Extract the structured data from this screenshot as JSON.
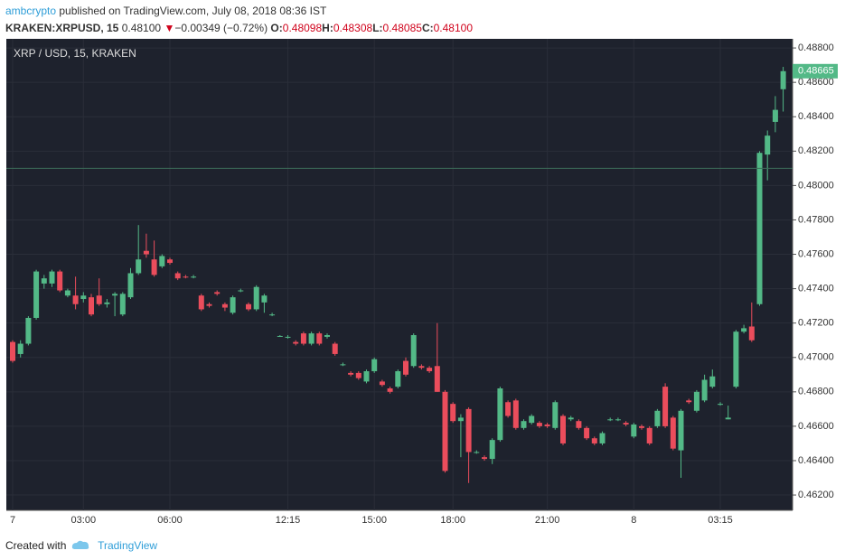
{
  "header": {
    "author": "ambcrypto",
    "published": "published on TradingView.com, July 08, 2018 08:36 IST",
    "symbol": "KRAKEN:XRPUSD, 15",
    "last": "0.48100",
    "arrow": "▼",
    "change": "−0.00349 (−0.72%)",
    "ohlc": [
      {
        "label": "O:",
        "value": "0.48098"
      },
      {
        "label": "H:",
        "value": "0.48308"
      },
      {
        "label": "L:",
        "value": "0.48085"
      },
      {
        "label": "C:",
        "value": "0.48100"
      }
    ]
  },
  "footer": {
    "created": "Created with",
    "brand": "TradingView"
  },
  "chart_data": {
    "type": "candlestick",
    "title": "XRP / USD, 15, KRAKEN",
    "up_color": "#53b987",
    "down_color": "#eb4d5c",
    "grid": true,
    "ylim": [
      0.46111,
      0.48853
    ],
    "yticks": [
      {
        "value": 0.462,
        "label": "0.46200"
      },
      {
        "value": 0.464,
        "label": "0.46400"
      },
      {
        "value": 0.466,
        "label": "0.46600"
      },
      {
        "value": 0.468,
        "label": "0.46800"
      },
      {
        "value": 0.47,
        "label": "0.47000"
      },
      {
        "value": 0.472,
        "label": "0.47200"
      },
      {
        "value": 0.474,
        "label": "0.47400"
      },
      {
        "value": 0.476,
        "label": "0.47600"
      },
      {
        "value": 0.478,
        "label": "0.47800"
      },
      {
        "value": 0.48,
        "label": "0.48000"
      },
      {
        "value": 0.482,
        "label": "0.48200"
      },
      {
        "value": 0.484,
        "label": "0.48400"
      },
      {
        "value": 0.486,
        "label": "0.48600"
      },
      {
        "value": 0.488,
        "label": "0.48800"
      }
    ],
    "price_line": 0.481,
    "last_label": "0.48665",
    "categories": [
      "7",
      null,
      null,
      null,
      null,
      null,
      null,
      null,
      null,
      "03:00",
      null,
      null,
      null,
      null,
      null,
      null,
      null,
      null,
      null,
      null,
      "06:00",
      null,
      null,
      null,
      null,
      null,
      null,
      null,
      null,
      null,
      null,
      null,
      null,
      null,
      null,
      "12:15",
      null,
      null,
      null,
      null,
      null,
      null,
      null,
      null,
      null,
      null,
      "15:00",
      null,
      null,
      null,
      null,
      null,
      null,
      null,
      null,
      null,
      "18:00",
      null,
      null,
      null,
      null,
      null,
      null,
      null,
      null,
      null,
      null,
      null,
      "21:00",
      null,
      null,
      null,
      null,
      null,
      null,
      null,
      null,
      null,
      null,
      "8",
      null,
      null,
      null,
      null,
      null,
      null,
      null,
      null,
      null,
      null,
      "03:15",
      null,
      null,
      null,
      null,
      null,
      null,
      null,
      null
    ],
    "open": [
      0.4709,
      0.4702,
      0.4708,
      0.4723,
      0.4743,
      0.4743,
      0.475,
      0.4736,
      0.4736,
      0.4734,
      0.4735,
      0.4736,
      0.4731,
      0.4736,
      0.4725,
      0.4735,
      0.4749,
      0.4762,
      0.4757,
      0.4753,
      0.4757,
      0.4749,
      0.4747,
      0.4747,
      0.4736,
      0.4731,
      0.4738,
      0.4731,
      0.4726,
      0.4739,
      0.4731,
      0.4728,
      0.4732,
      0.4725,
      0.4712,
      0.4712,
      0.4709,
      0.4714,
      0.4708,
      0.4714,
      0.4712,
      0.4708,
      0.4696,
      0.4691,
      0.4691,
      0.4686,
      0.4692,
      0.4686,
      0.4682,
      0.4683,
      0.4698,
      0.4695,
      0.4695,
      0.4694,
      0.4695,
      0.468,
      0.4673,
      0.4663,
      0.467,
      0.4645,
      0.4642,
      0.4641,
      0.4652,
      0.4674,
      0.4675,
      0.4659,
      0.4662,
      0.4662,
      0.4661,
      0.4659,
      0.4666,
      0.4664,
      0.4663,
      0.4659,
      0.4653,
      0.465,
      0.4664,
      0.4664,
      0.4662,
      0.4654,
      0.466,
      0.4659,
      0.466,
      0.4683,
      0.4665,
      0.4646,
      0.4675,
      0.4669,
      0.4675,
      0.4683,
      0.4673,
      0.4664,
      0.4683,
      0.4715,
      0.4718,
      0.4731,
      0.4818,
      0.4837,
      0.4856
    ],
    "high": [
      0.471,
      0.471,
      0.4724,
      0.4751,
      0.4748,
      0.4751,
      0.4751,
      0.474,
      0.4747,
      0.4738,
      0.4737,
      0.4746,
      0.4734,
      0.4738,
      0.4738,
      0.4752,
      0.4777,
      0.4772,
      0.4768,
      0.476,
      0.4758,
      0.475,
      0.4748,
      0.4748,
      0.4737,
      0.4732,
      0.4739,
      0.4732,
      0.4736,
      0.474,
      0.4732,
      0.4742,
      0.4737,
      0.4726,
      0.4713,
      0.4713,
      0.471,
      0.4715,
      0.4715,
      0.4715,
      0.4714,
      0.4709,
      0.4697,
      0.4692,
      0.4692,
      0.4693,
      0.47,
      0.4687,
      0.4683,
      0.4693,
      0.47,
      0.4714,
      0.4696,
      0.4695,
      0.472,
      0.4681,
      0.4674,
      0.4667,
      0.4671,
      0.4646,
      0.4643,
      0.4653,
      0.4683,
      0.4675,
      0.4676,
      0.4664,
      0.4667,
      0.4663,
      0.4662,
      0.4675,
      0.4667,
      0.4666,
      0.4664,
      0.466,
      0.4654,
      0.4657,
      0.4665,
      0.4665,
      0.4663,
      0.4662,
      0.4661,
      0.466,
      0.467,
      0.4685,
      0.4666,
      0.467,
      0.4676,
      0.4681,
      0.469,
      0.4693,
      0.4674,
      0.4672,
      0.4716,
      0.4719,
      0.4732,
      0.482,
      0.4832,
      0.4852,
      0.4869
    ],
    "low": [
      0.4697,
      0.47,
      0.4707,
      0.4722,
      0.474,
      0.4741,
      0.4738,
      0.4735,
      0.4728,
      0.4732,
      0.4724,
      0.473,
      0.4729,
      0.4724,
      0.4724,
      0.4734,
      0.4748,
      0.4758,
      0.4747,
      0.4752,
      0.4754,
      0.4745,
      0.4746,
      0.4746,
      0.4727,
      0.4729,
      0.4736,
      0.4727,
      0.4725,
      0.4738,
      0.4727,
      0.4727,
      0.4726,
      0.4724,
      0.4712,
      0.4711,
      0.4707,
      0.4707,
      0.4707,
      0.4707,
      0.4711,
      0.4701,
      0.4695,
      0.4689,
      0.4687,
      0.4685,
      0.4691,
      0.4683,
      0.4679,
      0.4682,
      0.4689,
      0.4694,
      0.4693,
      0.4691,
      0.468,
      0.4633,
      0.4662,
      0.4642,
      0.4627,
      0.4644,
      0.464,
      0.4638,
      0.4651,
      0.4665,
      0.4658,
      0.4658,
      0.4661,
      0.4659,
      0.4659,
      0.4658,
      0.4649,
      0.4663,
      0.4658,
      0.4652,
      0.4649,
      0.4649,
      0.4663,
      0.4663,
      0.466,
      0.4653,
      0.4658,
      0.4649,
      0.4659,
      0.4659,
      0.4646,
      0.463,
      0.4673,
      0.4668,
      0.4674,
      0.4682,
      0.4672,
      0.4664,
      0.4682,
      0.4714,
      0.4709,
      0.473,
      0.4803,
      0.4831,
      0.4843
    ],
    "close": [
      0.4698,
      0.4708,
      0.4723,
      0.475,
      0.4746,
      0.475,
      0.4739,
      0.4739,
      0.4731,
      0.4736,
      0.4725,
      0.4731,
      0.4732,
      0.4737,
      0.4737,
      0.4749,
      0.4757,
      0.476,
      0.4748,
      0.4759,
      0.4755,
      0.4746,
      0.47468,
      0.4747,
      0.4728,
      0.473,
      0.4737,
      0.4729,
      0.4735,
      0.4739,
      0.4728,
      0.4741,
      0.4736,
      0.4725,
      0.47125,
      0.4712,
      0.4708,
      0.4708,
      0.4714,
      0.4708,
      0.4713,
      0.4702,
      0.4696,
      0.469,
      0.4688,
      0.4692,
      0.4699,
      0.4684,
      0.468,
      0.4692,
      0.469,
      0.4713,
      0.4694,
      0.4692,
      0.468,
      0.4634,
      0.4663,
      0.4665,
      0.4645,
      0.4645,
      0.4641,
      0.4652,
      0.4682,
      0.4666,
      0.4659,
      0.4663,
      0.4666,
      0.466,
      0.466,
      0.4674,
      0.465,
      0.4665,
      0.4659,
      0.4653,
      0.465,
      0.4656,
      0.4664,
      0.4664,
      0.4661,
      0.4661,
      0.4659,
      0.465,
      0.4669,
      0.466,
      0.4647,
      0.4669,
      0.4674,
      0.468,
      0.4687,
      0.4689,
      0.4673,
      0.4665,
      0.4715,
      0.4717,
      0.471,
      0.4819,
      0.4829,
      0.4844,
      0.48665
    ]
  }
}
